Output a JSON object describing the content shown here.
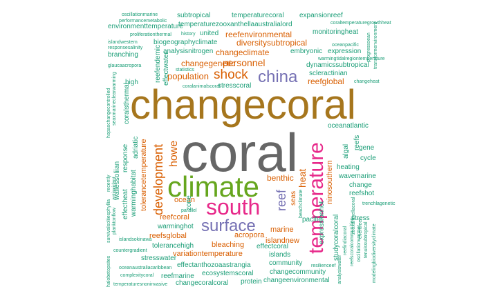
{
  "colors": {
    "c1": "#1b9e77",
    "c2": "#d95f02",
    "c3": "#7570b3",
    "c4": "#e7298a",
    "c5": "#66a61e",
    "c6": "#a6761d",
    "c7": "#666666"
  },
  "words": [
    {
      "text": "changecoral",
      "color": "c6"
    },
    {
      "text": "coral",
      "color": "c7"
    },
    {
      "text": "climate",
      "color": "c5"
    },
    {
      "text": "south",
      "color": "c4"
    },
    {
      "text": "temperature",
      "color": "c4"
    },
    {
      "text": "surface",
      "color": "c3"
    },
    {
      "text": "china",
      "color": "c3"
    },
    {
      "text": "shock",
      "color": "c2"
    },
    {
      "text": "development",
      "color": "c2"
    },
    {
      "text": "reef",
      "color": "c3"
    },
    {
      "text": "howe",
      "color": "c2"
    },
    {
      "text": "personnel",
      "color": "c2"
    },
    {
      "text": "population",
      "color": "c2"
    },
    {
      "text": "benthic",
      "color": "c2"
    },
    {
      "text": "heat",
      "color": "c2"
    },
    {
      "text": "changeclimate",
      "color": "c2"
    },
    {
      "text": "diversitysubtropical",
      "color": "c2"
    },
    {
      "text": "changegenetic",
      "color": "c2"
    },
    {
      "text": "reefenvironmental",
      "color": "c2"
    },
    {
      "text": "reefglobal",
      "color": "c2"
    },
    {
      "text": "ocean",
      "color": "c2"
    },
    {
      "text": "acropora",
      "color": "c2"
    },
    {
      "text": "bleaching",
      "color": "c2"
    },
    {
      "text": "reefsglobal",
      "color": "c2"
    },
    {
      "text": "variationtemperature",
      "color": "c2"
    },
    {
      "text": "islandnew",
      "color": "c2"
    },
    {
      "text": "marine",
      "color": "c2"
    },
    {
      "text": "reefcoral",
      "color": "c2"
    },
    {
      "text": "tolerancetemperature",
      "color": "c2"
    },
    {
      "text": "ninosouthern",
      "color": "c2"
    },
    {
      "text": "seas",
      "color": "c2"
    },
    {
      "text": "stresswater",
      "color": "c1"
    },
    {
      "text": "reefmarine",
      "color": "c1"
    },
    {
      "text": "changecoralcoral",
      "color": "c1"
    },
    {
      "text": "ecosystemscoral",
      "color": "c1"
    },
    {
      "text": "protein",
      "color": "c1"
    },
    {
      "text": "changeenvironmental",
      "color": "c1"
    },
    {
      "text": "changecommunity",
      "color": "c1"
    },
    {
      "text": "community",
      "color": "c1"
    },
    {
      "text": "islands",
      "color": "c1"
    },
    {
      "text": "effectanthozoaastrangia",
      "color": "c1"
    },
    {
      "text": "tolerancehigh",
      "color": "c1"
    },
    {
      "text": "effectcoral",
      "color": "c1"
    },
    {
      "text": "warminghot",
      "color": "c1"
    },
    {
      "text": "pacific",
      "color": "c1"
    },
    {
      "text": "stress",
      "color": "c1"
    },
    {
      "text": "reefshot",
      "color": "c1"
    },
    {
      "text": "change",
      "color": "c1"
    },
    {
      "text": "wavemarine",
      "color": "c1"
    },
    {
      "text": "heating",
      "color": "c1"
    },
    {
      "text": "cycle",
      "color": "c1"
    },
    {
      "text": "gene",
      "color": "c1"
    },
    {
      "text": "reefs",
      "color": "c1"
    },
    {
      "text": "algal",
      "color": "c1"
    },
    {
      "text": "oceanatlantic",
      "color": "c1"
    },
    {
      "text": "expressionhot",
      "color": "c1"
    },
    {
      "text": "studycoralcoral",
      "color": "c1"
    },
    {
      "text": "scleractinian",
      "color": "c1"
    },
    {
      "text": "dynamicssubtropical",
      "color": "c1"
    },
    {
      "text": "expression",
      "color": "c1"
    },
    {
      "text": "embryonic",
      "color": "c1"
    },
    {
      "text": "monitoringheat",
      "color": "c1"
    },
    {
      "text": "expansionreef",
      "color": "c1"
    },
    {
      "text": "temperaturecoral",
      "color": "c1"
    },
    {
      "text": "subtropical",
      "color": "c1"
    },
    {
      "text": "temperaturezooxanthellaaustralialord",
      "color": "c1"
    },
    {
      "text": "united",
      "color": "c1"
    },
    {
      "text": "environmenttemperature",
      "color": "c1"
    },
    {
      "text": "biogeographyclimate",
      "color": "c1"
    },
    {
      "text": "analysisnitrogen",
      "color": "c1"
    },
    {
      "text": "branching",
      "color": "c1"
    },
    {
      "text": "reefendemic",
      "color": "c1"
    },
    {
      "text": "effectwater",
      "color": "c1"
    },
    {
      "text": "high",
      "color": "c1"
    },
    {
      "text": "coralsthermal",
      "color": "c1"
    },
    {
      "text": "response",
      "color": "c1"
    },
    {
      "text": "adriatic",
      "color": "c1"
    },
    {
      "text": "wallessoliian",
      "color": "c1"
    },
    {
      "text": "warminghabitat",
      "color": "c1"
    },
    {
      "text": "effectheat",
      "color": "c1"
    },
    {
      "text": "zone",
      "color": "c1"
    },
    {
      "text": "stresscoral",
      "color": "c1"
    },
    {
      "text": "oscillationmarine",
      "color": "c1"
    },
    {
      "text": "performancemetabolic",
      "color": "c1"
    },
    {
      "text": "proliferationthermal",
      "color": "c1"
    },
    {
      "text": "islandwestern",
      "color": "c1"
    },
    {
      "text": "responsesalinity",
      "color": "c1"
    },
    {
      "text": "glaucaacropora",
      "color": "c1"
    },
    {
      "text": "history",
      "color": "c1"
    },
    {
      "text": "coraltemperaturegrowthheat",
      "color": "c1"
    },
    {
      "text": "oceanpacific",
      "color": "c1"
    },
    {
      "text": "warmingtidalregiontemperature",
      "color": "c1"
    },
    {
      "text": "changeheat",
      "color": "c1"
    },
    {
      "text": "coralanimalscoral",
      "color": "c1"
    },
    {
      "text": "progressoean",
      "color": "c1"
    },
    {
      "text": "transformenvironment",
      "color": "c1"
    },
    {
      "text": "statistics",
      "color": "c1"
    },
    {
      "text": "hopaschangecontrolled",
      "color": "c1"
    },
    {
      "text": "seaxmarineclearwarming",
      "color": "c1"
    },
    {
      "text": "recently",
      "color": "c1"
    },
    {
      "text": "antioxidant",
      "color": "c1"
    },
    {
      "text": "survivalsoliiesphyllia",
      "color": "c1"
    },
    {
      "text": "planktonflow",
      "color": "c1"
    },
    {
      "text": "islandsokinawa",
      "color": "c1"
    },
    {
      "text": "countergradient",
      "color": "c1"
    },
    {
      "text": "oceanaustraliacaribbean",
      "color": "c1"
    },
    {
      "text": "complexitycoral",
      "color": "c1"
    },
    {
      "text": "temperaturesnoninvasive",
      "color": "c1"
    },
    {
      "text": "halobetopsites",
      "color": "c1"
    },
    {
      "text": "parallel",
      "color": "c1"
    },
    {
      "text": "beachclimate",
      "color": "c1"
    },
    {
      "text": "trenchlagenetic",
      "color": "c1"
    },
    {
      "text": "resilienceef",
      "color": "c1"
    },
    {
      "text": "reefindiacoral",
      "color": "c1"
    },
    {
      "text": "reefscoralcommunities",
      "color": "c1"
    },
    {
      "text": "oscillationwarmer",
      "color": "c1"
    },
    {
      "text": "tenuissubtropical",
      "color": "c1"
    },
    {
      "text": "modelingbiodiversityclimate",
      "color": "c1"
    },
    {
      "text": "analysiswater",
      "color": "c1"
    },
    {
      "text": "eventreef",
      "color": "c1"
    },
    {
      "text": "zooxanthellacoral",
      "color": "c1"
    }
  ]
}
